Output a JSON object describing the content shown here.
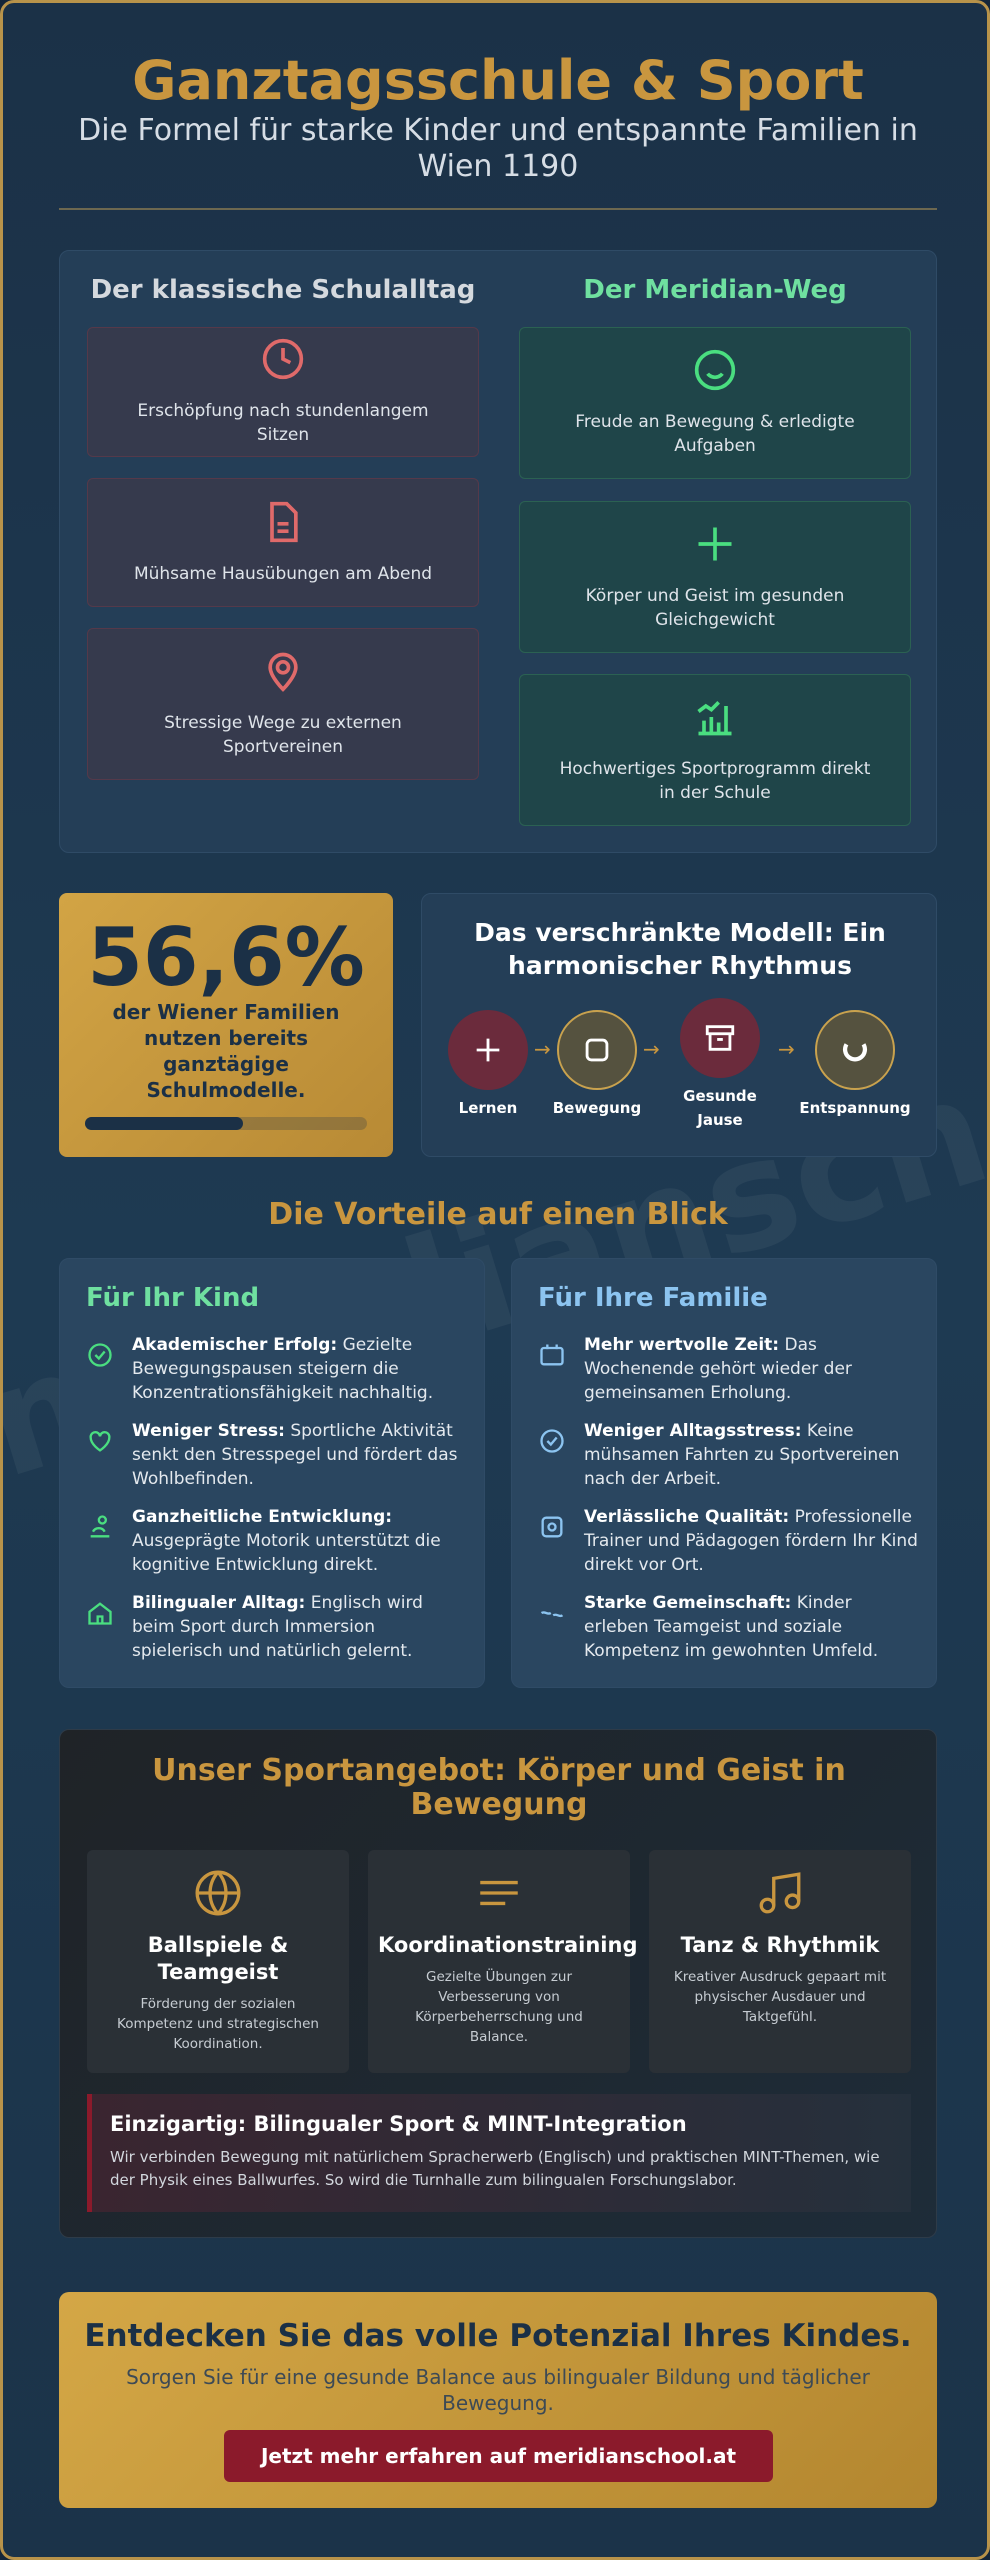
{
  "header": {
    "title": "Ganztagsschule & Sport",
    "subtitle": "Die Formel für starke Kinder und entspannte Familien in Wien 1190"
  },
  "comparison": {
    "classic": {
      "title": "Der klassische Schulalltag",
      "items": [
        "Erschöpfung nach stundenlangem Sitzen",
        "Mühsame Hausübungen am Abend",
        "Stressige Wege zu externen Sportvereinen"
      ]
    },
    "meridian": {
      "title": "Der Meridian-Weg",
      "items": [
        "Freude an Bewegung & erledigte Aufgaben",
        "Körper und Geist im gesunden Gleichgewicht",
        "Hochwertiges Sportprogramm direkt in der Schule"
      ]
    }
  },
  "stat": {
    "value": "56,6%",
    "text": "der Wiener Familien nutzen bereits ganztägige Schulmodelle."
  },
  "model": {
    "title": "Das verschränkte Modell: Ein harmonischer Rhythmus",
    "steps": [
      "Lernen",
      "Bewegung",
      "Gesunde Jause",
      "Entspannung"
    ]
  },
  "benefits": {
    "title": "Die Vorteile auf einen Blick",
    "child": {
      "title": "Für Ihr Kind",
      "items": [
        {
          "label": "Akademischer Erfolg:",
          "text": "Gezielte Bewegungspausen steigern die Konzentrationsfähigkeit nachhaltig."
        },
        {
          "label": "Weniger Stress:",
          "text": "Sportliche Aktivität senkt den Stresspegel und fördert das Wohlbefinden."
        },
        {
          "label": "Ganzheitliche Entwicklung:",
          "text": "Ausgeprägte Motorik unterstützt die kognitive Entwicklung direkt."
        },
        {
          "label": "Bilingualer Alltag:",
          "text": "Englisch wird beim Sport durch Immersion spielerisch und natürlich gelernt."
        }
      ]
    },
    "family": {
      "title": "Für Ihre Familie",
      "items": [
        {
          "label": "Mehr wertvolle Zeit:",
          "text": "Das Wochenende gehört wieder der gemeinsamen Erholung."
        },
        {
          "label": "Weniger Alltagsstress:",
          "text": "Keine mühsamen Fahrten zu Sportvereinen nach der Arbeit."
        },
        {
          "label": "Verlässliche Qualität:",
          "text": "Professionelle Trainer und Pädagogen fördern Ihr Kind direkt vor Ort."
        },
        {
          "label": "Starke Gemeinschaft:",
          "text": "Kinder erleben Teamgeist und soziale Kompetenz im gewohnten Umfeld."
        }
      ]
    }
  },
  "sports": {
    "title": "Unser Sportangebot: Körper und Geist in Bewegung",
    "offers": [
      {
        "title": "Ballspiele & Teamgeist",
        "text": "Förderung der sozialen Kompetenz und strategischen Koordination."
      },
      {
        "title": "Koordinationstraining",
        "text": "Gezielte Übungen zur Verbesserung von Körperbeherrschung und Balance."
      },
      {
        "title": "Tanz & Rhythmik",
        "text": "Kreativer Ausdruck gepaart mit physischer Ausdauer und Taktgefühl."
      }
    ],
    "highlight": {
      "title": "Einzigartig: Bilingualer Sport & MINT-Integration",
      "text": "Wir verbinden Bewegung mit natürlichem Spracherwerb (Englisch) und praktischen MINT-Themen, wie der Physik eines Ballwurfes. So wird die Turnhalle zum bilingualen Forschungslabor."
    }
  },
  "cta": {
    "title": "Entdecken Sie das volle Potenzial Ihres Kindes.",
    "text": "Sorgen Sie für eine gesunde Balance aus bilingualer Bildung und täglicher Bewegung.",
    "button": "Jetzt mehr erfahren auf meridianschool.at"
  },
  "watermark": "meridianschool"
}
